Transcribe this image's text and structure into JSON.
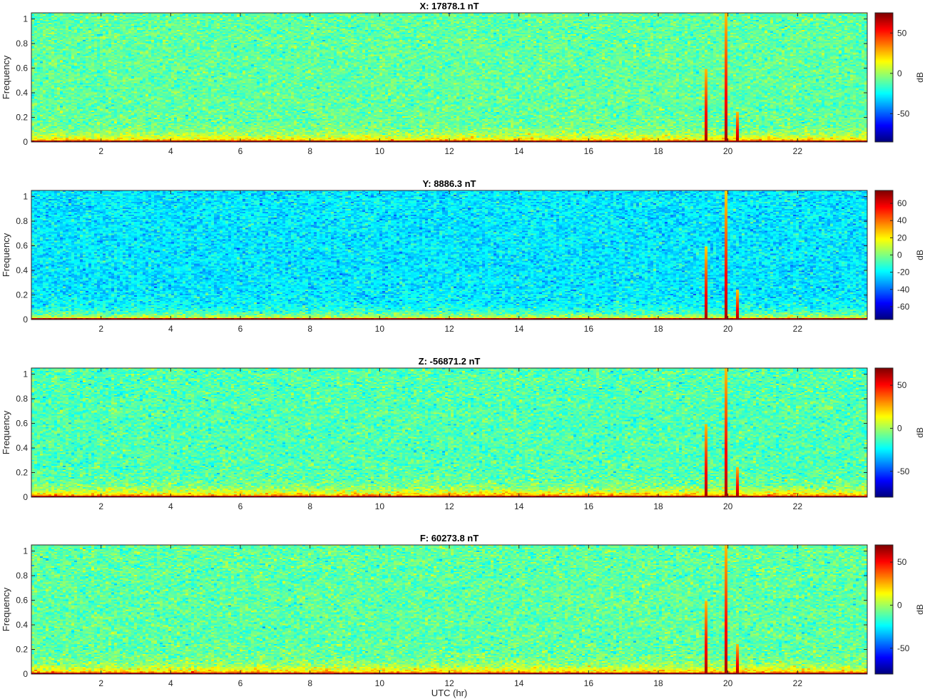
{
  "chart_data": [
    {
      "type": "heatmap",
      "title": "X: 17878.1 nT",
      "ylabel": "Frequency",
      "xlabel": "",
      "xlim": [
        0,
        24
      ],
      "ylim": [
        0,
        1.05
      ],
      "xticks": [
        2,
        4,
        6,
        8,
        10,
        12,
        14,
        16,
        18,
        20,
        22
      ],
      "yticks": [
        0,
        0.2,
        0.4,
        0.6,
        0.8,
        1
      ],
      "colorbar": {
        "label": "dB",
        "clim": [
          -85,
          75
        ],
        "ticks": [
          -50,
          0,
          50
        ]
      },
      "background_level_db": -10,
      "low_frequency_level_db": 35,
      "events": [
        {
          "hour": 19.35,
          "top_frequency": 0.6,
          "peak_db": 70
        },
        {
          "hour": 19.95,
          "top_frequency": 1.05,
          "peak_db": 70
        },
        {
          "hour": 20.3,
          "top_frequency": 0.25,
          "peak_db": 70
        }
      ]
    },
    {
      "type": "heatmap",
      "title": "Y: 8886.3 nT",
      "ylabel": "Frequency",
      "xlabel": "",
      "xlim": [
        0,
        24
      ],
      "ylim": [
        0,
        1.05
      ],
      "xticks": [
        2,
        4,
        6,
        8,
        10,
        12,
        14,
        16,
        18,
        20,
        22
      ],
      "yticks": [
        0,
        0.2,
        0.4,
        0.6,
        0.8,
        1
      ],
      "colorbar": {
        "label": "dB",
        "clim": [
          -75,
          75
        ],
        "ticks": [
          -60,
          -40,
          -20,
          0,
          20,
          40,
          60
        ]
      },
      "background_level_db": -22,
      "low_frequency_level_db": 25,
      "events": [
        {
          "hour": 19.35,
          "top_frequency": 0.6,
          "peak_db": 70
        },
        {
          "hour": 19.95,
          "top_frequency": 1.05,
          "peak_db": 70
        },
        {
          "hour": 20.3,
          "top_frequency": 0.25,
          "peak_db": 70
        }
      ]
    },
    {
      "type": "heatmap",
      "title": "Z: -56871.2 nT",
      "ylabel": "Frequency",
      "xlabel": "",
      "xlim": [
        0,
        24
      ],
      "ylim": [
        0,
        1.05
      ],
      "xticks": [
        2,
        4,
        6,
        8,
        10,
        12,
        14,
        16,
        18,
        20,
        22
      ],
      "yticks": [
        0,
        0.2,
        0.4,
        0.6,
        0.8,
        1
      ],
      "colorbar": {
        "label": "dB",
        "clim": [
          -80,
          70
        ],
        "ticks": [
          -50,
          0,
          50
        ]
      },
      "background_level_db": -12,
      "low_frequency_level_db": 40,
      "events": [
        {
          "hour": 19.35,
          "top_frequency": 0.6,
          "peak_db": 65
        },
        {
          "hour": 19.95,
          "top_frequency": 1.05,
          "peak_db": 65
        },
        {
          "hour": 20.3,
          "top_frequency": 0.25,
          "peak_db": 65
        }
      ]
    },
    {
      "type": "heatmap",
      "title": "F: 60273.8 nT",
      "ylabel": "Frequency",
      "xlabel": "UTC (hr)",
      "xlim": [
        0,
        24
      ],
      "ylim": [
        0,
        1.05
      ],
      "xticks": [
        2,
        4,
        6,
        8,
        10,
        12,
        14,
        16,
        18,
        20,
        22
      ],
      "yticks": [
        0,
        0.2,
        0.4,
        0.6,
        0.8,
        1
      ],
      "colorbar": {
        "label": "dB",
        "clim": [
          -80,
          70
        ],
        "ticks": [
          -50,
          0,
          50
        ]
      },
      "background_level_db": -10,
      "low_frequency_level_db": 38,
      "events": [
        {
          "hour": 19.35,
          "top_frequency": 0.6,
          "peak_db": 65
        },
        {
          "hour": 19.95,
          "top_frequency": 1.05,
          "peak_db": 65
        },
        {
          "hour": 20.3,
          "top_frequency": 0.25,
          "peak_db": 65
        }
      ]
    }
  ]
}
